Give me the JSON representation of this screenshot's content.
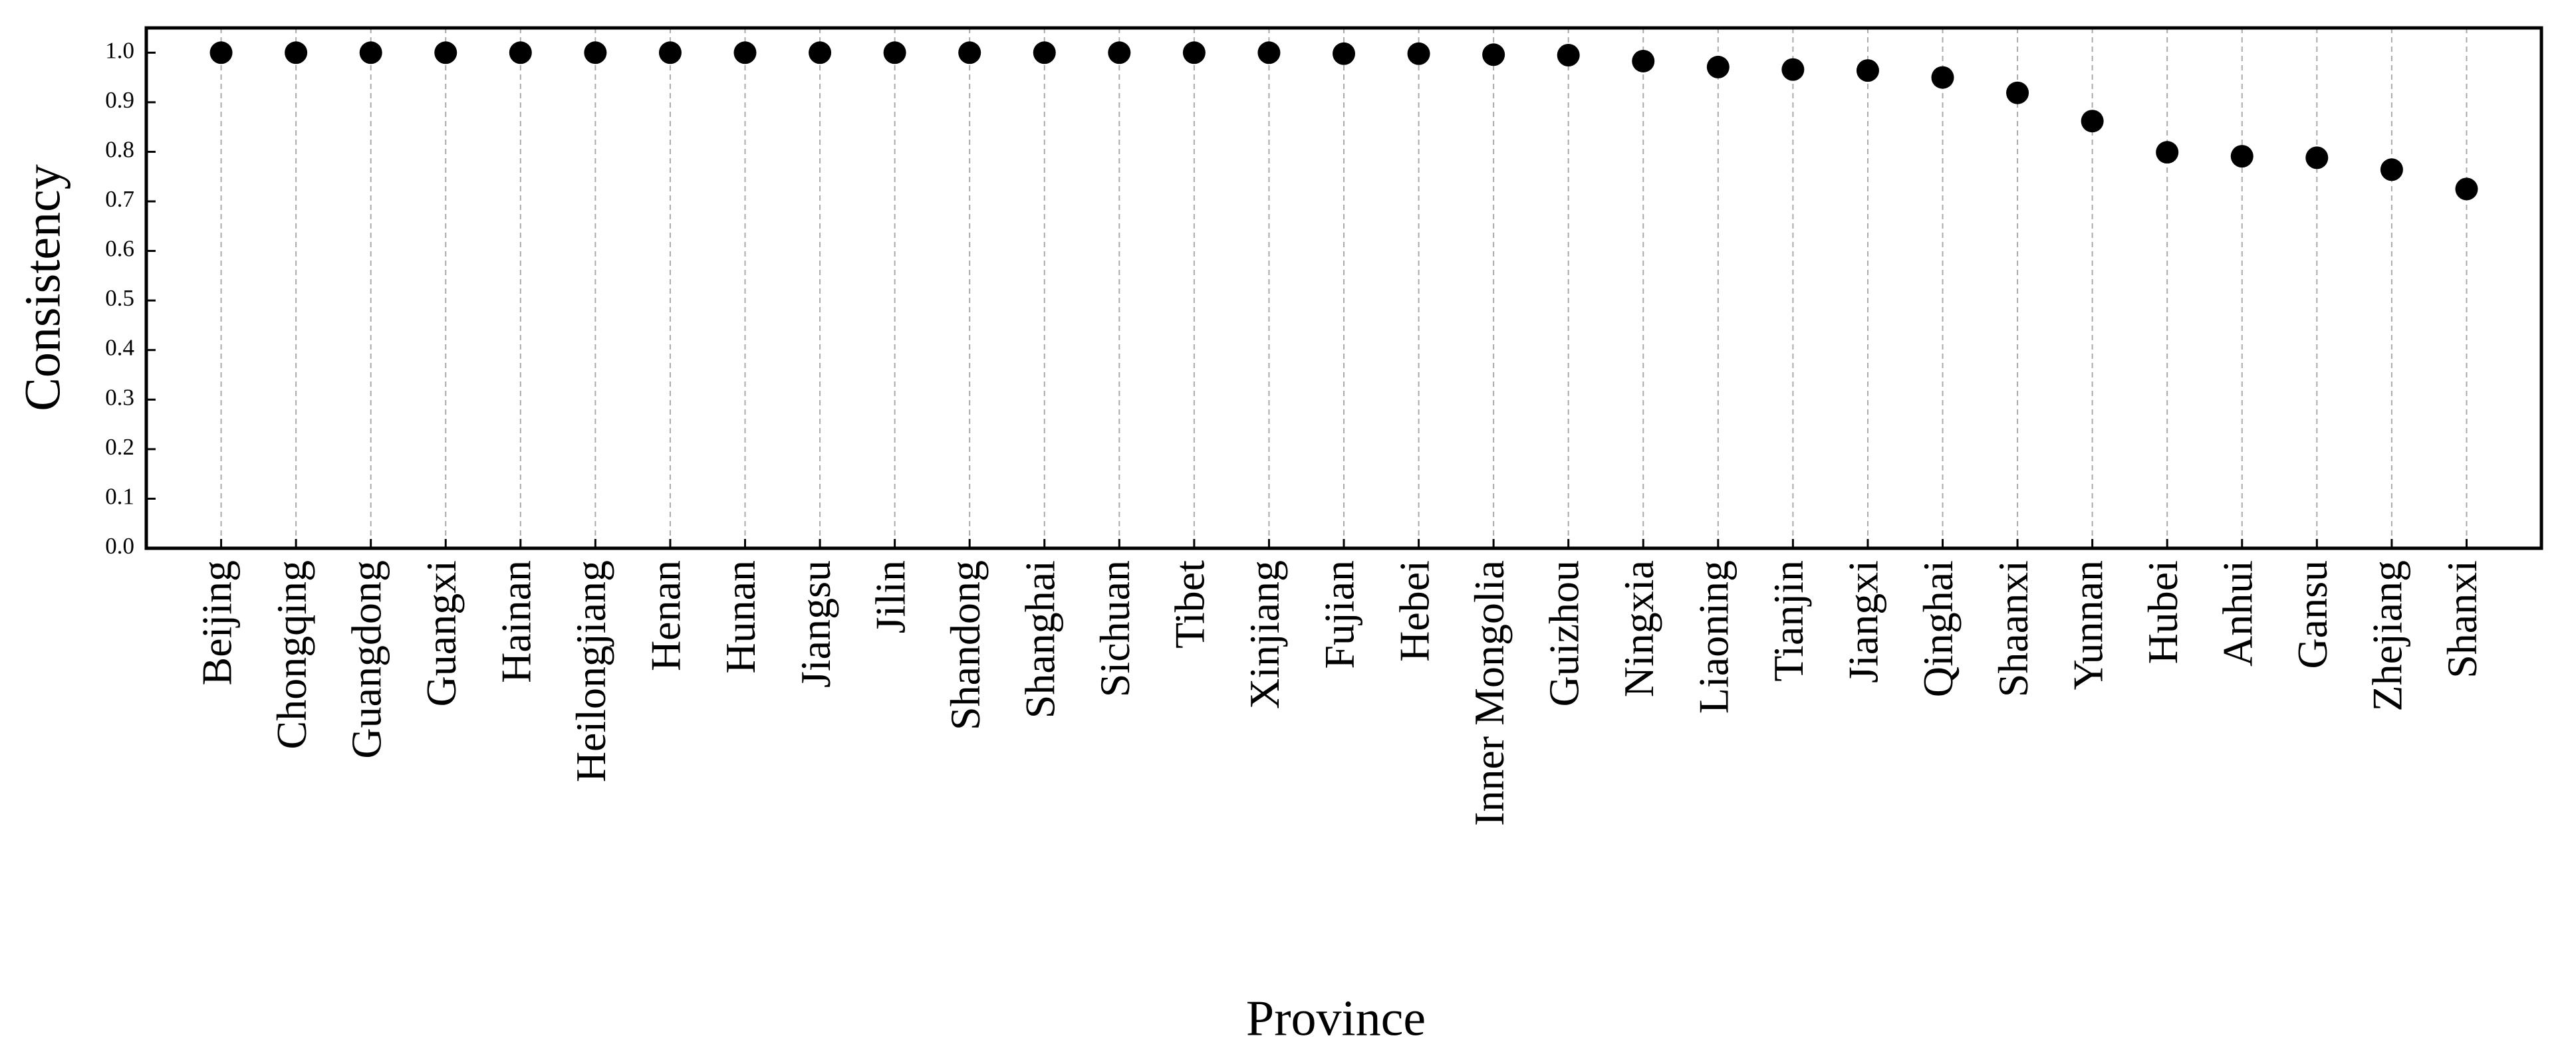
{
  "chart_data": {
    "type": "scatter",
    "x_label": "Province",
    "y_label": "Consistency",
    "categories": [
      "Beijing",
      "Chongqing",
      "Guangdong",
      "Guangxi",
      "Hainan",
      "Heilongjiang",
      "Henan",
      "Hunan",
      "Jiangsu",
      "Jilin",
      "Shandong",
      "Shanghai",
      "Sichuan",
      "Tibet",
      "Xinjiang",
      "Fujian",
      "Hebei",
      "Inner Mongolia",
      "Guizhou",
      "Ningxia",
      "Liaoning",
      "Tianjin",
      "Jiangxi",
      "Qinghai",
      "Shaanxi",
      "Yunnan",
      "Hubei",
      "Anhui",
      "Gansu",
      "Zhejiang",
      "Shanxi"
    ],
    "values": [
      1.0,
      1.0,
      1.0,
      1.0,
      1.0,
      1.0,
      1.0,
      1.0,
      1.0,
      1.0,
      1.0,
      1.0,
      1.0,
      1.0,
      1.0,
      0.998,
      0.998,
      0.996,
      0.995,
      0.983,
      0.971,
      0.966,
      0.964,
      0.95,
      0.919,
      0.862,
      0.799,
      0.791,
      0.788,
      0.764,
      0.725
    ],
    "color": "#000000",
    "ylim": [
      0,
      1.05
    ],
    "yticks": [
      {
        "value": 0,
        "label": "0.0"
      },
      0.1,
      0.2,
      0.3,
      0.4,
      0.5,
      0.6,
      0.7,
      0.8,
      0.9,
      {
        "value": 1,
        "label": "1.0"
      }
    ],
    "x_grid": true
  }
}
